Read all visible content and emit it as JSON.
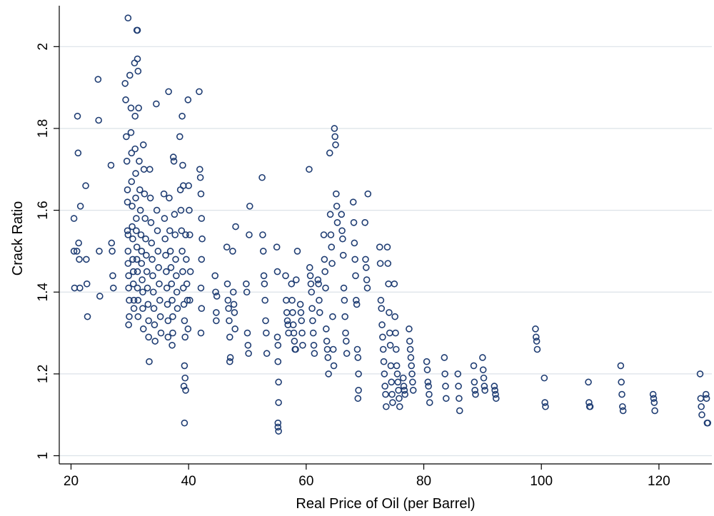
{
  "chart_data": {
    "type": "scatter",
    "xlabel": "Real Price of Oil (per Barrel)",
    "ylabel": "Crack Ratio",
    "xlim": [
      18,
      129
    ],
    "ylim": [
      0.98,
      2.1
    ],
    "x_ticks": [
      20,
      40,
      60,
      80,
      100,
      120
    ],
    "y_ticks": [
      1,
      1.2,
      1.4,
      1.6,
      1.8,
      2
    ],
    "x_tick_labels": [
      "20",
      "40",
      "60",
      "80",
      "100",
      "120"
    ],
    "y_tick_labels": [
      "1",
      "1.2",
      "1.4",
      "1.6",
      "1.8",
      "2"
    ],
    "grid": "horizontal",
    "legend": "none",
    "marker": "hollow circle",
    "colors": {
      "marker": "#1f3d73",
      "grid": "#dce2e8",
      "axis": "#000000"
    },
    "points": [
      [
        20.5,
        1.58
      ],
      [
        20.5,
        1.5
      ],
      [
        20.6,
        1.41
      ],
      [
        21.0,
        1.5
      ],
      [
        21.1,
        1.83
      ],
      [
        21.2,
        1.74
      ],
      [
        21.3,
        1.52
      ],
      [
        21.4,
        1.48
      ],
      [
        21.6,
        1.61
      ],
      [
        21.5,
        1.41
      ],
      [
        22.5,
        1.66
      ],
      [
        22.6,
        1.48
      ],
      [
        22.7,
        1.42
      ],
      [
        22.8,
        1.34
      ],
      [
        24.6,
        1.92
      ],
      [
        24.7,
        1.82
      ],
      [
        24.8,
        1.5
      ],
      [
        24.9,
        1.39
      ],
      [
        26.8,
        1.71
      ],
      [
        26.9,
        1.52
      ],
      [
        27.0,
        1.5
      ],
      [
        27.1,
        1.44
      ],
      [
        27.2,
        1.41
      ],
      [
        29.2,
        1.91
      ],
      [
        29.3,
        1.87
      ],
      [
        29.4,
        1.78
      ],
      [
        29.5,
        1.72
      ],
      [
        29.6,
        1.65
      ],
      [
        29.6,
        1.62
      ],
      [
        29.6,
        1.55
      ],
      [
        29.7,
        1.54
      ],
      [
        29.7,
        1.5
      ],
      [
        29.7,
        1.47
      ],
      [
        29.8,
        1.44
      ],
      [
        29.8,
        1.41
      ],
      [
        29.9,
        1.38
      ],
      [
        29.9,
        1.34
      ],
      [
        29.8,
        1.32
      ],
      [
        29.7,
        2.07
      ],
      [
        30.0,
        1.93
      ],
      [
        30.2,
        1.85
      ],
      [
        30.2,
        1.79
      ],
      [
        30.3,
        1.74
      ],
      [
        30.3,
        1.67
      ],
      [
        30.4,
        1.61
      ],
      [
        30.4,
        1.56
      ],
      [
        30.5,
        1.53
      ],
      [
        30.5,
        1.48
      ],
      [
        30.6,
        1.45
      ],
      [
        30.6,
        1.42
      ],
      [
        30.7,
        1.38
      ],
      [
        30.7,
        1.36
      ],
      [
        30.8,
        1.96
      ],
      [
        30.9,
        1.83
      ],
      [
        30.9,
        1.75
      ],
      [
        31.0,
        1.69
      ],
      [
        31.0,
        1.63
      ],
      [
        31.1,
        1.58
      ],
      [
        31.1,
        1.55
      ],
      [
        31.2,
        1.51
      ],
      [
        31.2,
        1.48
      ],
      [
        31.3,
        1.45
      ],
      [
        31.3,
        1.41
      ],
      [
        31.4,
        1.38
      ],
      [
        31.4,
        1.34
      ],
      [
        31.2,
        2.04
      ],
      [
        31.3,
        2.04
      ],
      [
        31.3,
        1.97
      ],
      [
        31.4,
        1.94
      ],
      [
        31.5,
        1.85
      ],
      [
        31.6,
        1.72
      ],
      [
        31.7,
        1.65
      ],
      [
        31.8,
        1.6
      ],
      [
        31.9,
        1.54
      ],
      [
        32.0,
        1.5
      ],
      [
        32.0,
        1.47
      ],
      [
        32.1,
        1.43
      ],
      [
        32.2,
        1.4
      ],
      [
        32.2,
        1.36
      ],
      [
        32.3,
        1.31
      ],
      [
        32.3,
        1.76
      ],
      [
        32.4,
        1.7
      ],
      [
        32.5,
        1.64
      ],
      [
        32.6,
        1.58
      ],
      [
        32.7,
        1.53
      ],
      [
        32.8,
        1.49
      ],
      [
        32.9,
        1.45
      ],
      [
        33.0,
        1.41
      ],
      [
        33.1,
        1.37
      ],
      [
        33.2,
        1.33
      ],
      [
        33.2,
        1.29
      ],
      [
        33.3,
        1.23
      ],
      [
        33.4,
        1.7
      ],
      [
        33.5,
        1.63
      ],
      [
        33.6,
        1.57
      ],
      [
        33.7,
        1.52
      ],
      [
        33.8,
        1.48
      ],
      [
        33.9,
        1.44
      ],
      [
        34.0,
        1.4
      ],
      [
        34.1,
        1.36
      ],
      [
        34.2,
        1.32
      ],
      [
        34.3,
        1.28
      ],
      [
        34.5,
        1.86
      ],
      [
        34.6,
        1.6
      ],
      [
        34.7,
        1.55
      ],
      [
        34.8,
        1.5
      ],
      [
        34.9,
        1.46
      ],
      [
        35.0,
        1.42
      ],
      [
        35.1,
        1.38
      ],
      [
        35.2,
        1.34
      ],
      [
        35.3,
        1.3
      ],
      [
        35.8,
        1.64
      ],
      [
        35.9,
        1.58
      ],
      [
        36.0,
        1.53
      ],
      [
        36.1,
        1.49
      ],
      [
        36.2,
        1.45
      ],
      [
        36.3,
        1.41
      ],
      [
        36.4,
        1.37
      ],
      [
        36.5,
        1.33
      ],
      [
        36.5,
        1.29
      ],
      [
        36.6,
        1.89
      ],
      [
        36.7,
        1.63
      ],
      [
        36.8,
        1.55
      ],
      [
        36.9,
        1.5
      ],
      [
        37.0,
        1.46
      ],
      [
        37.1,
        1.42
      ],
      [
        37.2,
        1.38
      ],
      [
        37.3,
        1.34
      ],
      [
        37.3,
        1.3
      ],
      [
        37.2,
        1.27
      ],
      [
        37.4,
        1.73
      ],
      [
        37.5,
        1.72
      ],
      [
        37.6,
        1.59
      ],
      [
        37.7,
        1.54
      ],
      [
        37.8,
        1.48
      ],
      [
        37.9,
        1.44
      ],
      [
        38.0,
        1.4
      ],
      [
        38.1,
        1.36
      ],
      [
        38.5,
        1.78
      ],
      [
        38.6,
        1.65
      ],
      [
        38.7,
        1.6
      ],
      [
        38.8,
        1.55
      ],
      [
        38.9,
        1.5
      ],
      [
        39.0,
        1.45
      ],
      [
        39.1,
        1.41
      ],
      [
        39.2,
        1.37
      ],
      [
        39.3,
        1.33
      ],
      [
        39.4,
        1.29
      ],
      [
        39.3,
        1.22
      ],
      [
        39.2,
        1.17
      ],
      [
        39.3,
        1.08
      ],
      [
        38.9,
        1.83
      ],
      [
        39.0,
        1.71
      ],
      [
        39.1,
        1.66
      ],
      [
        39.5,
        1.54
      ],
      [
        39.6,
        1.48
      ],
      [
        39.7,
        1.42
      ],
      [
        39.8,
        1.38
      ],
      [
        39.9,
        1.31
      ],
      [
        39.4,
        1.19
      ],
      [
        39.5,
        1.16
      ],
      [
        39.9,
        1.87
      ],
      [
        40.0,
        1.66
      ],
      [
        40.1,
        1.6
      ],
      [
        40.2,
        1.54
      ],
      [
        40.3,
        1.45
      ],
      [
        40.2,
        1.38
      ],
      [
        41.8,
        1.89
      ],
      [
        41.9,
        1.7
      ],
      [
        42.0,
        1.68
      ],
      [
        42.1,
        1.64
      ],
      [
        42.2,
        1.58
      ],
      [
        42.3,
        1.53
      ],
      [
        42.2,
        1.48
      ],
      [
        42.1,
        1.41
      ],
      [
        42.2,
        1.36
      ],
      [
        42.1,
        1.3
      ],
      [
        44.5,
        1.44
      ],
      [
        44.6,
        1.4
      ],
      [
        44.7,
        1.35
      ],
      [
        44.7,
        1.33
      ],
      [
        44.8,
        1.39
      ],
      [
        46.5,
        1.51
      ],
      [
        46.6,
        1.42
      ],
      [
        46.7,
        1.38
      ],
      [
        46.8,
        1.36
      ],
      [
        46.9,
        1.33
      ],
      [
        47.0,
        1.29
      ],
      [
        47.1,
        1.24
      ],
      [
        47.0,
        1.23
      ],
      [
        47.5,
        1.5
      ],
      [
        47.6,
        1.4
      ],
      [
        47.7,
        1.37
      ],
      [
        47.8,
        1.35
      ],
      [
        47.9,
        1.31
      ],
      [
        48.0,
        1.56
      ],
      [
        49.8,
        1.42
      ],
      [
        49.9,
        1.4
      ],
      [
        50.0,
        1.3
      ],
      [
        50.1,
        1.27
      ],
      [
        50.2,
        1.25
      ],
      [
        50.3,
        1.54
      ],
      [
        50.4,
        1.61
      ],
      [
        52.5,
        1.68
      ],
      [
        52.6,
        1.54
      ],
      [
        52.7,
        1.5
      ],
      [
        52.8,
        1.44
      ],
      [
        52.9,
        1.42
      ],
      [
        53.0,
        1.38
      ],
      [
        53.1,
        1.33
      ],
      [
        53.2,
        1.3
      ],
      [
        53.3,
        1.25
      ],
      [
        55.0,
        1.51
      ],
      [
        55.1,
        1.45
      ],
      [
        55.1,
        1.29
      ],
      [
        55.2,
        1.27
      ],
      [
        55.2,
        1.23
      ],
      [
        55.3,
        1.18
      ],
      [
        55.3,
        1.13
      ],
      [
        55.2,
        1.08
      ],
      [
        55.3,
        1.06
      ],
      [
        55.2,
        1.07
      ],
      [
        56.5,
        1.44
      ],
      [
        56.6,
        1.38
      ],
      [
        56.7,
        1.35
      ],
      [
        56.8,
        1.33
      ],
      [
        56.9,
        1.32
      ],
      [
        57.0,
        1.3
      ],
      [
        57.5,
        1.42
      ],
      [
        57.6,
        1.38
      ],
      [
        57.7,
        1.35
      ],
      [
        57.8,
        1.32
      ],
      [
        57.9,
        1.3
      ],
      [
        58.0,
        1.28
      ],
      [
        58.1,
        1.26
      ],
      [
        58.2,
        1.26
      ],
      [
        58.3,
        1.43
      ],
      [
        58.5,
        1.5
      ],
      [
        59.0,
        1.37
      ],
      [
        59.1,
        1.35
      ],
      [
        59.2,
        1.33
      ],
      [
        59.3,
        1.3
      ],
      [
        59.4,
        1.27
      ],
      [
        60.5,
        1.7
      ],
      [
        60.6,
        1.46
      ],
      [
        60.7,
        1.44
      ],
      [
        60.8,
        1.42
      ],
      [
        60.9,
        1.4
      ],
      [
        61.0,
        1.36
      ],
      [
        61.1,
        1.33
      ],
      [
        61.2,
        1.3
      ],
      [
        61.3,
        1.27
      ],
      [
        61.4,
        1.25
      ],
      [
        62.0,
        1.43
      ],
      [
        62.1,
        1.42
      ],
      [
        62.2,
        1.38
      ],
      [
        62.3,
        1.35
      ],
      [
        63.0,
        1.54
      ],
      [
        63.1,
        1.48
      ],
      [
        63.2,
        1.45
      ],
      [
        63.3,
        1.41
      ],
      [
        63.4,
        1.31
      ],
      [
        63.5,
        1.28
      ],
      [
        63.6,
        1.26
      ],
      [
        63.7,
        1.24
      ],
      [
        63.8,
        1.2
      ],
      [
        64.0,
        1.74
      ],
      [
        64.1,
        1.59
      ],
      [
        64.2,
        1.54
      ],
      [
        64.3,
        1.51
      ],
      [
        64.4,
        1.47
      ],
      [
        64.5,
        1.34
      ],
      [
        64.6,
        1.26
      ],
      [
        64.7,
        1.22
      ],
      [
        64.8,
        1.8
      ],
      [
        64.9,
        1.78
      ],
      [
        65.0,
        1.76
      ],
      [
        65.1,
        1.64
      ],
      [
        65.2,
        1.61
      ],
      [
        65.3,
        1.57
      ],
      [
        66.0,
        1.59
      ],
      [
        66.1,
        1.55
      ],
      [
        66.2,
        1.53
      ],
      [
        66.3,
        1.49
      ],
      [
        66.4,
        1.41
      ],
      [
        66.5,
        1.38
      ],
      [
        66.6,
        1.34
      ],
      [
        66.7,
        1.3
      ],
      [
        66.8,
        1.28
      ],
      [
        66.9,
        1.25
      ],
      [
        68.0,
        1.62
      ],
      [
        68.1,
        1.57
      ],
      [
        68.2,
        1.52
      ],
      [
        68.3,
        1.48
      ],
      [
        68.4,
        1.44
      ],
      [
        68.5,
        1.38
      ],
      [
        68.6,
        1.37
      ],
      [
        68.7,
        1.26
      ],
      [
        68.8,
        1.24
      ],
      [
        68.9,
        1.2
      ],
      [
        68.9,
        1.16
      ],
      [
        68.8,
        1.14
      ],
      [
        70.0,
        1.57
      ],
      [
        70.1,
        1.48
      ],
      [
        70.2,
        1.46
      ],
      [
        70.3,
        1.43
      ],
      [
        70.4,
        1.41
      ],
      [
        70.5,
        1.64
      ],
      [
        72.5,
        1.51
      ],
      [
        72.6,
        1.47
      ],
      [
        72.7,
        1.38
      ],
      [
        72.8,
        1.36
      ],
      [
        72.9,
        1.32
      ],
      [
        73.0,
        1.29
      ],
      [
        73.1,
        1.26
      ],
      [
        73.2,
        1.23
      ],
      [
        73.3,
        1.2
      ],
      [
        73.4,
        1.17
      ],
      [
        73.5,
        1.15
      ],
      [
        73.6,
        1.12
      ],
      [
        73.8,
        1.51
      ],
      [
        73.9,
        1.47
      ],
      [
        74.0,
        1.42
      ],
      [
        74.1,
        1.35
      ],
      [
        74.2,
        1.3
      ],
      [
        74.3,
        1.27
      ],
      [
        74.4,
        1.22
      ],
      [
        74.5,
        1.18
      ],
      [
        74.6,
        1.15
      ],
      [
        74.7,
        1.13
      ],
      [
        75.0,
        1.42
      ],
      [
        75.1,
        1.34
      ],
      [
        75.2,
        1.3
      ],
      [
        75.3,
        1.26
      ],
      [
        75.4,
        1.22
      ],
      [
        75.5,
        1.2
      ],
      [
        75.6,
        1.18
      ],
      [
        75.7,
        1.16
      ],
      [
        75.8,
        1.14
      ],
      [
        75.9,
        1.12
      ],
      [
        76.5,
        1.19
      ],
      [
        76.6,
        1.17
      ],
      [
        76.7,
        1.16
      ],
      [
        76.8,
        1.15
      ],
      [
        77.5,
        1.31
      ],
      [
        77.6,
        1.28
      ],
      [
        77.7,
        1.26
      ],
      [
        77.8,
        1.24
      ],
      [
        77.9,
        1.22
      ],
      [
        78.0,
        1.2
      ],
      [
        78.1,
        1.18
      ],
      [
        78.2,
        1.16
      ],
      [
        80.5,
        1.23
      ],
      [
        80.6,
        1.21
      ],
      [
        80.7,
        1.18
      ],
      [
        80.8,
        1.17
      ],
      [
        80.9,
        1.15
      ],
      [
        81.0,
        1.13
      ],
      [
        83.5,
        1.24
      ],
      [
        83.6,
        1.2
      ],
      [
        83.7,
        1.17
      ],
      [
        83.8,
        1.14
      ],
      [
        85.8,
        1.2
      ],
      [
        85.9,
        1.17
      ],
      [
        86.0,
        1.14
      ],
      [
        86.1,
        1.11
      ],
      [
        88.5,
        1.22
      ],
      [
        88.6,
        1.18
      ],
      [
        88.7,
        1.16
      ],
      [
        88.8,
        1.15
      ],
      [
        90.0,
        1.24
      ],
      [
        90.1,
        1.21
      ],
      [
        90.2,
        1.19
      ],
      [
        90.3,
        1.17
      ],
      [
        90.4,
        1.16
      ],
      [
        92.0,
        1.17
      ],
      [
        92.1,
        1.16
      ],
      [
        92.2,
        1.15
      ],
      [
        92.3,
        1.14
      ],
      [
        99.0,
        1.31
      ],
      [
        99.1,
        1.29
      ],
      [
        99.2,
        1.28
      ],
      [
        99.3,
        1.26
      ],
      [
        100.5,
        1.19
      ],
      [
        100.6,
        1.13
      ],
      [
        100.7,
        1.12
      ],
      [
        108.0,
        1.18
      ],
      [
        108.1,
        1.13
      ],
      [
        108.2,
        1.12
      ],
      [
        108.3,
        1.12
      ],
      [
        113.5,
        1.22
      ],
      [
        113.6,
        1.18
      ],
      [
        113.7,
        1.15
      ],
      [
        113.8,
        1.12
      ],
      [
        113.9,
        1.11
      ],
      [
        119.0,
        1.15
      ],
      [
        119.1,
        1.14
      ],
      [
        119.2,
        1.13
      ],
      [
        119.3,
        1.11
      ],
      [
        127.0,
        1.2
      ],
      [
        127.1,
        1.14
      ],
      [
        127.2,
        1.12
      ],
      [
        127.3,
        1.1
      ],
      [
        128.0,
        1.15
      ],
      [
        128.1,
        1.14
      ],
      [
        128.2,
        1.08
      ],
      [
        128.3,
        1.08
      ]
    ]
  }
}
